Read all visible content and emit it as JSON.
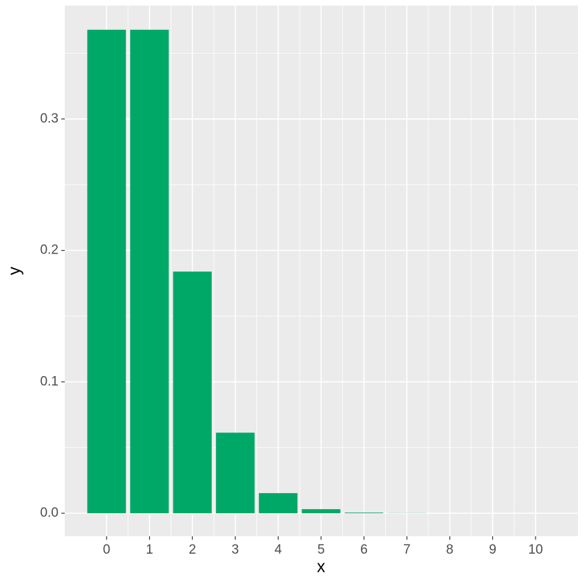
{
  "chart_data": {
    "type": "bar",
    "x_label": "x",
    "y_label": "y",
    "x": [
      0,
      1,
      2,
      3,
      4,
      5,
      6,
      7,
      8,
      9,
      10
    ],
    "values": [
      0.3679,
      0.3679,
      0.1839,
      0.0613,
      0.0153,
      0.0031,
      0.0005,
      0.0001,
      0,
      0,
      0
    ],
    "bar_width": 0.9,
    "color": "#00a868",
    "xlim": [
      -0.975,
      10.99
    ],
    "ylim": [
      -0.0175,
      0.3863
    ],
    "xticks": [
      0,
      1,
      2,
      3,
      4,
      5,
      6,
      7,
      8,
      9,
      10
    ],
    "yticks": [
      {
        "value": 0,
        "label": "0.0"
      },
      {
        "value": 0.1,
        "label": "0.1"
      },
      {
        "value": 0.2,
        "label": "0.2"
      },
      {
        "value": 0.3,
        "label": "0.3"
      }
    ],
    "grid": true
  }
}
